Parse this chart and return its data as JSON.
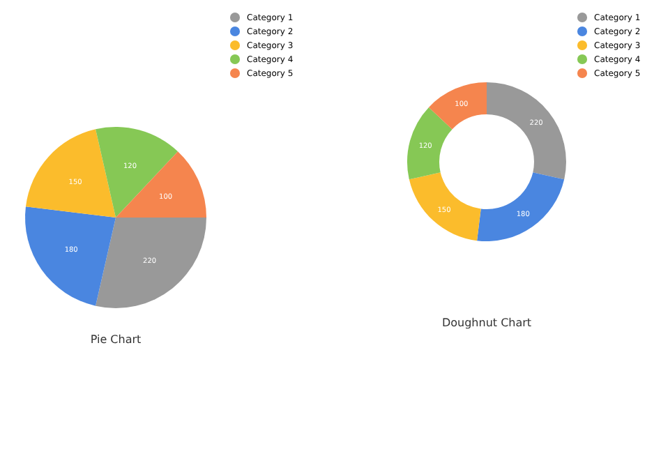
{
  "chart_data": [
    {
      "type": "pie",
      "title": "Pie Chart",
      "categories": [
        "Category 1",
        "Category 2",
        "Category 3",
        "Category 4",
        "Category 5"
      ],
      "values": [
        220,
        180,
        150,
        120,
        100
      ],
      "colors": [
        "#999999",
        "#4a86e0",
        "#fbbc2c",
        "#86c855",
        "#f5854e"
      ],
      "data_labels": true,
      "legend": "top right"
    },
    {
      "type": "donut",
      "title": "Doughnut Chart",
      "categories": [
        "Category 1",
        "Category 2",
        "Category 3",
        "Category 4",
        "Category 5"
      ],
      "values": [
        220,
        180,
        150,
        120,
        100
      ],
      "colors": [
        "#999999",
        "#4a86e0",
        "#fbbc2c",
        "#86c855",
        "#f5854e"
      ],
      "data_labels": true,
      "legend": "top right"
    }
  ]
}
